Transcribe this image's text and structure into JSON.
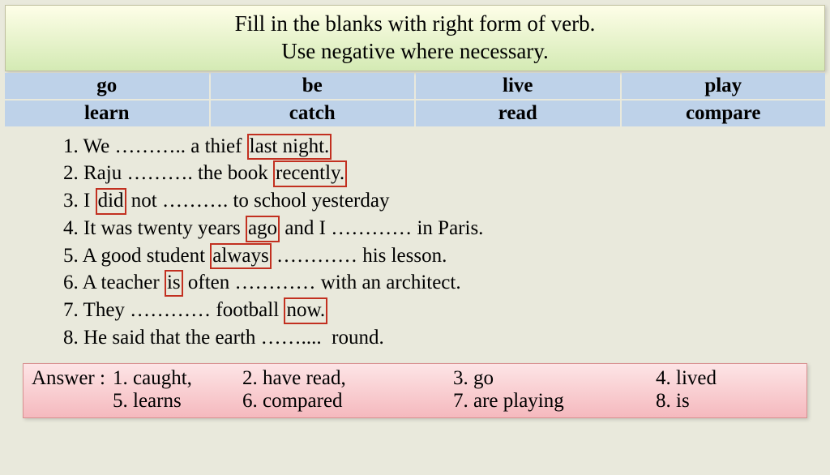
{
  "header": {
    "line1": "Fill in the blanks with right form of verb.",
    "line2": "Use negative where necessary."
  },
  "verbs": {
    "row1": [
      "go",
      "be",
      "live",
      "play"
    ],
    "row2": [
      "learn",
      "catch",
      "read",
      "compare"
    ]
  },
  "sentences": {
    "s1a": "1. We ……….. a thief ",
    "s1b": "last night.",
    "s2a": "2. Raju ………. the book ",
    "s2b": "recently.",
    "s3a": "3. I ",
    "s3b": "did",
    "s3c": " not ………. to school yesterday",
    "s4a": "4. It was twenty years ",
    "s4b": "ago",
    "s4c": " and I ………… in Paris.",
    "s5a": "5. A good student ",
    "s5b": "always",
    "s5c": " ………… his lesson.",
    "s6a": "6. A teacher ",
    "s6b": "is",
    "s6c": " often ………… with an architect.",
    "s7a": "7. They ………… football ",
    "s7b": "now.",
    "s8": "8. He said that the earth ……....  round."
  },
  "answers": {
    "label": "Answer :",
    "r1c1": " 1. caught,",
    "r1c2": "2. have read,",
    "r1c3": "3. go",
    "r1c4": "4. lived",
    "r2c1": "5.  learns",
    "r2c2": "6. compared",
    "r2c3": "7. are playing",
    "r2c4": "8. is"
  },
  "colors": {
    "page_bg": "#e9e9dc",
    "header_grad_top": "#fefee8",
    "header_grad_bottom": "#d4eab4",
    "verb_cell_bg": "#bed2e9",
    "redbox_border": "#c23020",
    "answer_grad_top": "#fde5e6",
    "answer_grad_bottom": "#f5b9be"
  }
}
